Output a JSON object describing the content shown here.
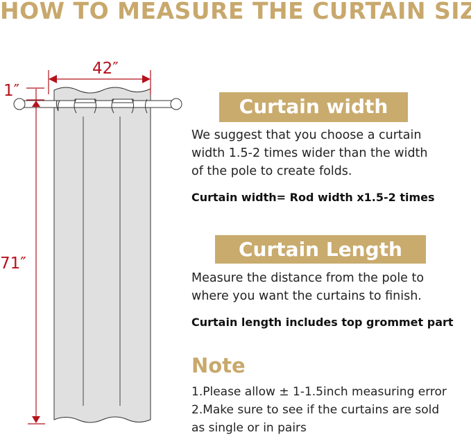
{
  "title": "HOW TO MEASURE THE CURTAIN SIZE",
  "diagram": {
    "width_label": "42″",
    "top_label": "1″",
    "length_label": "71″",
    "dimension_color": "#b5121b",
    "curtain_color": "#e0e0e0"
  },
  "width_section": {
    "heading": "Curtain width",
    "lines": [
      "We suggest that you choose a curtain",
      "width 1.5-2 times wider than the width",
      "of the pole to create folds."
    ],
    "formula": "Curtain width= Rod width x1.5-2 times"
  },
  "length_section": {
    "heading": "Curtain Length",
    "lines": [
      "Measure the distance from the pole to",
      "where you want the curtains to finish."
    ],
    "formula": "Curtain length includes top grommet part"
  },
  "note": {
    "heading": "Note",
    "lines": [
      "1.Please allow ± 1-1.5inch measuring error",
      "2.Make sure to see if the curtains are sold",
      "as single or in pairs"
    ]
  },
  "accent_color": "#c9ab6e"
}
